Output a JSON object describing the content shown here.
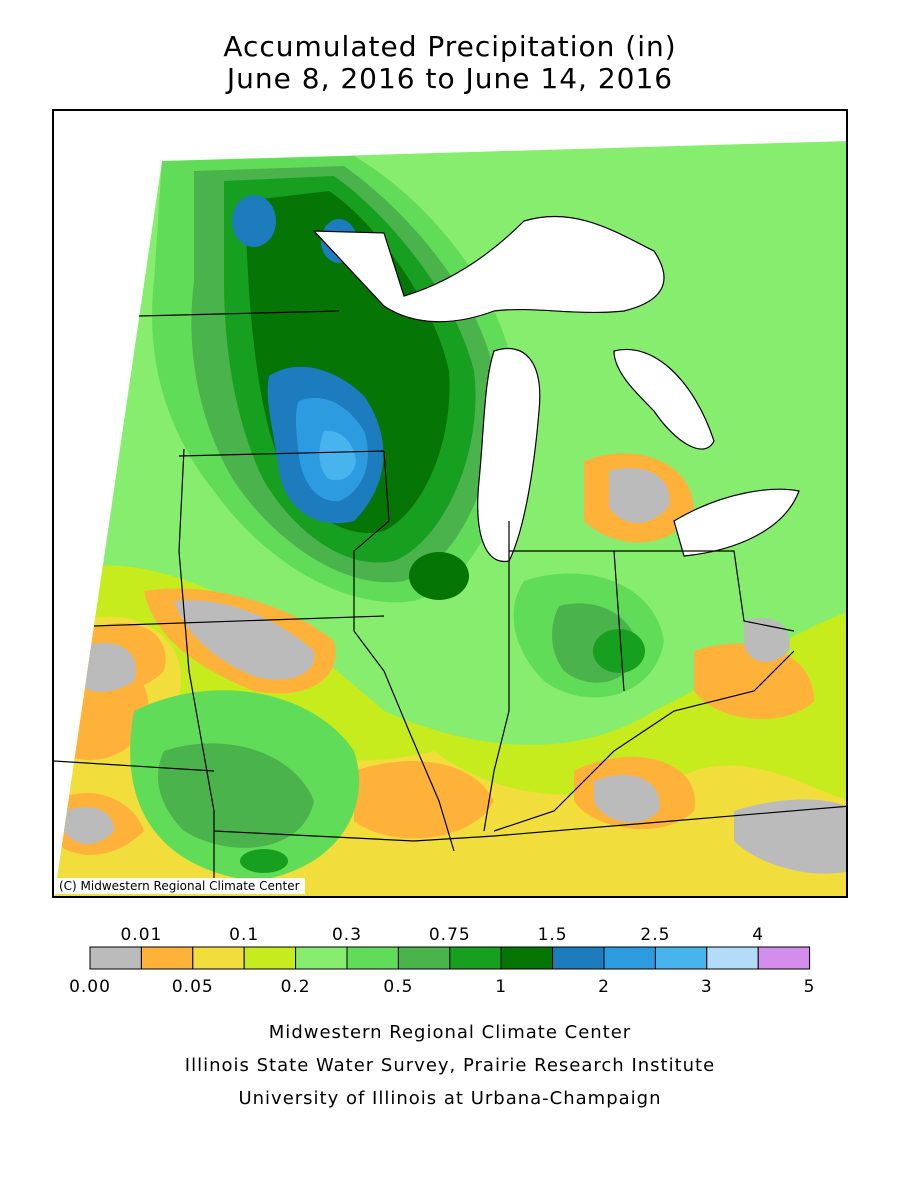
{
  "title": {
    "line1": "Accumulated Precipitation (in)",
    "line2": "June 8, 2016 to June 14, 2016"
  },
  "map": {
    "credit": "(C) Midwestern Regional Climate Center",
    "lake_color": "#ffffff",
    "no_data_color": "#ffffff"
  },
  "legend": {
    "colors": [
      "#bbbbbb",
      "#ffb23a",
      "#f1dd3c",
      "#c6ec1e",
      "#86ed6f",
      "#61dc58",
      "#4bb34c",
      "#17a01f",
      "#057505",
      "#1d7cbd",
      "#2d9be0",
      "#48b4ee",
      "#b3dcf8",
      "#d38ded"
    ],
    "top_labels": [
      "0.01",
      "0.1",
      "0.3",
      "0.75",
      "1.5",
      "2.5",
      "4"
    ],
    "bottom_labels": [
      "0.00",
      "0.05",
      "0.2",
      "0.5",
      "1",
      "2",
      "3",
      "5"
    ]
  },
  "footer": {
    "line1": "Midwestern Regional Climate Center",
    "line2": "Illinois State Water Survey, Prairie Research Institute",
    "line3": "University of Illinois at Urbana-Champaign"
  }
}
